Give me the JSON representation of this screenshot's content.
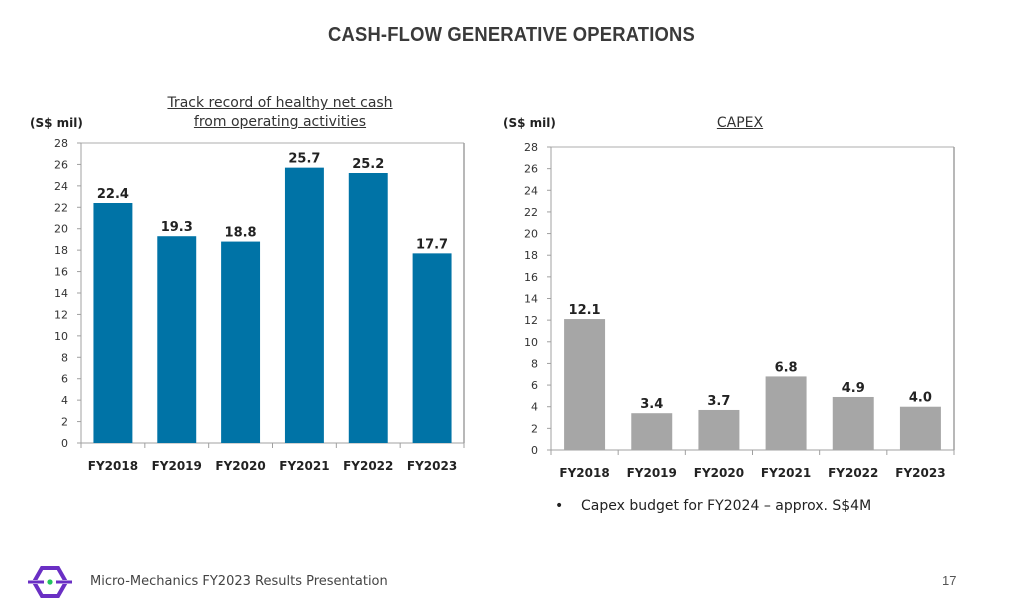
{
  "slide": {
    "title": "CASH-FLOW GENERATIVE OPERATIONS",
    "footer_text": "Micro-Mechanics FY2023 Results Presentation",
    "page_number": "17",
    "logo_icon": "micro-mechanics-logo-icon",
    "bullet_icon": "bullet-dot-icon",
    "bullet_text": "Capex budget for FY2024 – approx. S$4M",
    "colors": {
      "operating_cash_bar": "#0073a6",
      "capex_bar": "#a6a6a6",
      "logo_purple": "#6a2fc4",
      "logo_green": "#22c55e"
    }
  },
  "chart_data": [
    {
      "type": "bar",
      "title": "Track record of healthy net cash from operating activities",
      "title_lines": [
        "Track record of healthy net cash",
        "from operating activities"
      ],
      "ylabel": "(S$ mil)",
      "xlabel": "",
      "categories": [
        "FY2018",
        "FY2019",
        "FY2020",
        "FY2021",
        "FY2022",
        "FY2023"
      ],
      "values": [
        22.4,
        19.3,
        18.8,
        25.7,
        25.2,
        17.7
      ],
      "data_labels": [
        "22.4",
        "19.3",
        "18.8",
        "25.7",
        "25.2",
        "17.7"
      ],
      "ylim": [
        0,
        28
      ],
      "yticks": [
        0,
        2,
        4,
        6,
        8,
        10,
        12,
        14,
        16,
        18,
        20,
        22,
        24,
        26,
        28
      ],
      "grid": false,
      "legend": "none",
      "bar_color": "#0073a6"
    },
    {
      "type": "bar",
      "title": "CAPEX",
      "title_lines": [
        "CAPEX"
      ],
      "ylabel": "(S$ mil)",
      "xlabel": "",
      "categories": [
        "FY2018",
        "FY2019",
        "FY2020",
        "FY2021",
        "FY2022",
        "FY2023"
      ],
      "values": [
        12.1,
        3.4,
        3.7,
        6.8,
        4.9,
        4.0
      ],
      "data_labels": [
        "12.1",
        "3.4",
        "3.7",
        "6.8",
        "4.9",
        "4.0"
      ],
      "ylim": [
        0,
        28
      ],
      "yticks": [
        0,
        2,
        4,
        6,
        8,
        10,
        12,
        14,
        16,
        18,
        20,
        22,
        24,
        26,
        28
      ],
      "grid": false,
      "legend": "none",
      "bar_color": "#a6a6a6"
    }
  ]
}
